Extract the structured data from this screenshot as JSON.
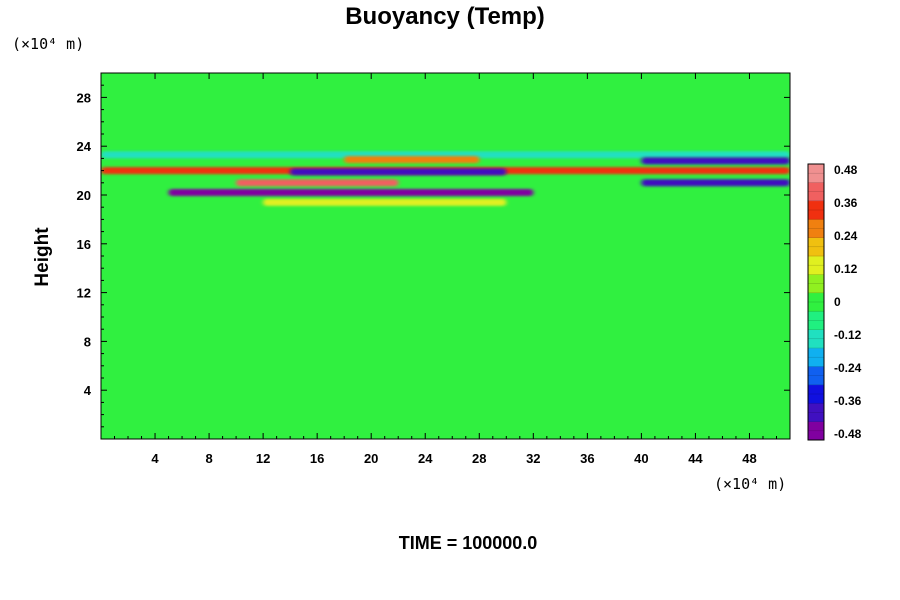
{
  "chart_data": {
    "type": "heatmap",
    "title": "Buoyancy (Temp)",
    "ylabel": "Height",
    "xlabel": "",
    "x_unit": "(×10⁴ m)",
    "y_unit": "(×10⁴ m)",
    "xlim": [
      0,
      51
    ],
    "ylim": [
      0,
      30
    ],
    "x_ticks": [
      4,
      8,
      12,
      16,
      20,
      24,
      28,
      32,
      36,
      40,
      44,
      48
    ],
    "y_ticks": [
      4,
      8,
      12,
      16,
      20,
      24,
      28
    ],
    "colorbar": {
      "min": -0.48,
      "max": 0.48,
      "ticks": [
        "0.48",
        "0.36",
        "0.24",
        "0.12",
        "0",
        "-0.12",
        "-0.24",
        "-0.36",
        "-0.48"
      ],
      "colors": [
        "#8000a0",
        "#4010c0",
        "#1010e0",
        "#1060f0",
        "#10b0f0",
        "#20e0c0",
        "#20f080",
        "#30f040",
        "#90f020",
        "#e0f020",
        "#f0c010",
        "#f08010",
        "#f03010",
        "#f06060",
        "#f09090"
      ]
    },
    "background_value": 0.02,
    "bands": [
      {
        "y": 23.3,
        "x_from": 0,
        "x_to": 51,
        "value": -0.1
      },
      {
        "y": 22.8,
        "x_from": 40,
        "x_to": 51,
        "value": -0.38
      },
      {
        "y": 22.0,
        "x_from": 0,
        "x_to": 51,
        "value": 0.3
      },
      {
        "y": 21.9,
        "x_from": 14,
        "x_to": 30,
        "value": -0.4
      },
      {
        "y": 22.9,
        "x_from": 18,
        "x_to": 28,
        "value": 0.26
      },
      {
        "y": 21.0,
        "x_from": 10,
        "x_to": 22,
        "value": 0.4
      },
      {
        "y": 21.0,
        "x_from": 40,
        "x_to": 51,
        "value": -0.4
      },
      {
        "y": 20.2,
        "x_from": 5,
        "x_to": 32,
        "value": -0.42
      },
      {
        "y": 19.4,
        "x_from": 12,
        "x_to": 30,
        "value": 0.14
      }
    ]
  },
  "footer": {
    "time_label": "TIME = 100000.0"
  }
}
